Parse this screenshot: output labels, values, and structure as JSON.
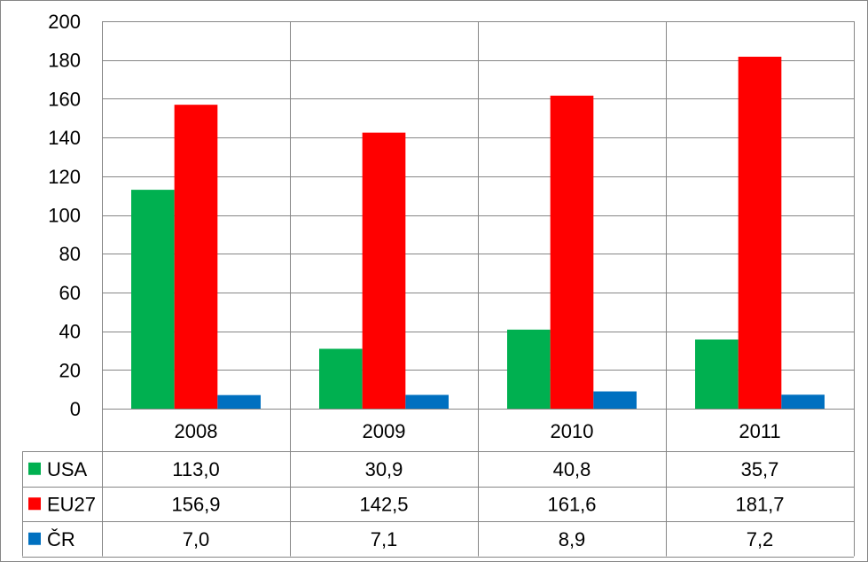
{
  "chart_data": {
    "type": "bar",
    "categories": [
      "2008",
      "2009",
      "2010",
      "2011"
    ],
    "series": [
      {
        "name": "USA",
        "values": [
          113.0,
          30.9,
          40.8,
          35.7
        ],
        "color": "#00b050",
        "labels": [
          "113,0",
          "30,9",
          "40,8",
          "35,7"
        ]
      },
      {
        "name": "EU27",
        "values": [
          156.9,
          142.5,
          161.6,
          181.7
        ],
        "color": "#ff0000",
        "labels": [
          "156,9",
          "142,5",
          "161,6",
          "181,7"
        ]
      },
      {
        "name": "ČR",
        "values": [
          7.0,
          7.1,
          8.9,
          7.2
        ],
        "color": "#0070c0",
        "labels": [
          "7,0",
          "7,1",
          "8,9",
          "7,2"
        ]
      }
    ],
    "ylim": [
      0,
      200
    ],
    "yticks": [
      "0",
      "20",
      "40",
      "60",
      "80",
      "100",
      "120",
      "140",
      "160",
      "180",
      "200"
    ],
    "grid": true,
    "legend": "data-table"
  }
}
